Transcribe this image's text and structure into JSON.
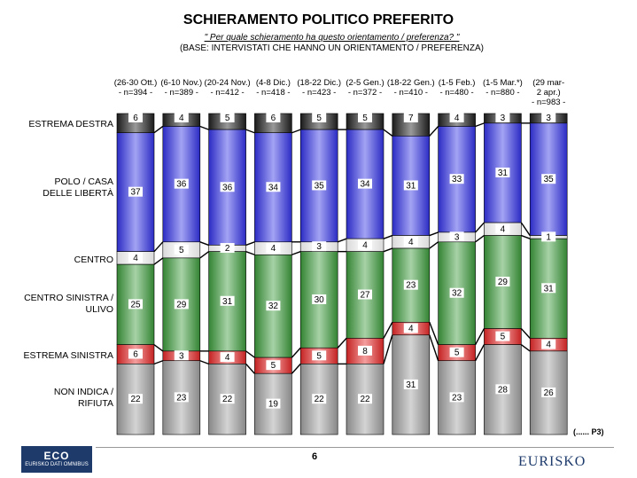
{
  "title": "SCHIERAMENTO POLITICO PREFERITO",
  "question": "\" Per quale schieramento ha questo orientamento / preferenza? \"",
  "base": "(BASE: INTERVISTATI CHE HANNO UN ORIENTAMENTO / PREFERENZA)",
  "page_number": "6",
  "source_note": "(...... P3)",
  "logo_left": {
    "big": "ECO",
    "small": "EURISKO DATI OMNIBUS"
  },
  "logo_right": "EURISKO",
  "chart_data": {
    "type": "bar",
    "stacked": true,
    "percent_stacked": true,
    "categories": [
      {
        "line1": "(26-30 Ott.)",
        "line2": "- n=394 -"
      },
      {
        "line1": "(6-10 Nov.)",
        "line2": "- n=389 -"
      },
      {
        "line1": "(20-24 Nov.)",
        "line2": "- n=412 -"
      },
      {
        "line1": "(4-8 Dic.)",
        "line2": "- n=418 -"
      },
      {
        "line1": "(18-22 Dic.)",
        "line2": "- n=423 -"
      },
      {
        "line1": "(2-5 Gen.)",
        "line2": "- n=372 -"
      },
      {
        "line1": "(18-22 Gen.)",
        "line2": "- n=410 -"
      },
      {
        "line1": "(1-5 Feb.)",
        "line2": "- n=480 -"
      },
      {
        "line1": "(1-5 Mar.*)",
        "line2": "- n=880 -"
      },
      {
        "line1": "(29 mar-",
        "line2": "2 apr.)",
        "line3": "- n=983 -"
      }
    ],
    "series": [
      {
        "name": "ESTREMA DESTRA",
        "label_lines": [
          "ESTREMA DESTRA"
        ],
        "color": "#1e1e1e",
        "values": [
          6,
          4,
          5,
          6,
          5,
          5,
          7,
          4,
          3,
          3
        ]
      },
      {
        "name": "POLO / CASA DELLE LIBERTÀ",
        "label_lines": [
          "POLO / CASA",
          "DELLE LIBERTÀ"
        ],
        "color": "#3232e6",
        "values": [
          37,
          36,
          36,
          34,
          35,
          34,
          31,
          33,
          31,
          35
        ]
      },
      {
        "name": "CENTRO",
        "label_lines": [
          "CENTRO"
        ],
        "color": "#ffffff",
        "values": [
          4,
          5,
          2,
          4,
          3,
          4,
          4,
          3,
          4,
          1
        ]
      },
      {
        "name": "CENTRO SINISTRA / ULIVO",
        "label_lines": [
          "CENTRO SINISTRA /",
          "ULIVO"
        ],
        "color": "#3c9a3c",
        "values": [
          25,
          29,
          31,
          32,
          30,
          27,
          23,
          32,
          29,
          31
        ]
      },
      {
        "name": "ESTREMA SINISTRA",
        "label_lines": [
          "ESTREMA SINISTRA"
        ],
        "color": "#e62828",
        "values": [
          6,
          3,
          4,
          5,
          5,
          8,
          4,
          5,
          5,
          4
        ]
      },
      {
        "name": "NON INDICA / RIFIUTA",
        "label_lines": [
          "NON INDICA /",
          "RIFIUTA"
        ],
        "color": "#a0a0a0",
        "values": [
          22,
          23,
          22,
          19,
          22,
          22,
          31,
          23,
          28,
          26
        ]
      }
    ],
    "ylim": [
      0,
      100
    ],
    "legend": "left",
    "grid": false
  }
}
